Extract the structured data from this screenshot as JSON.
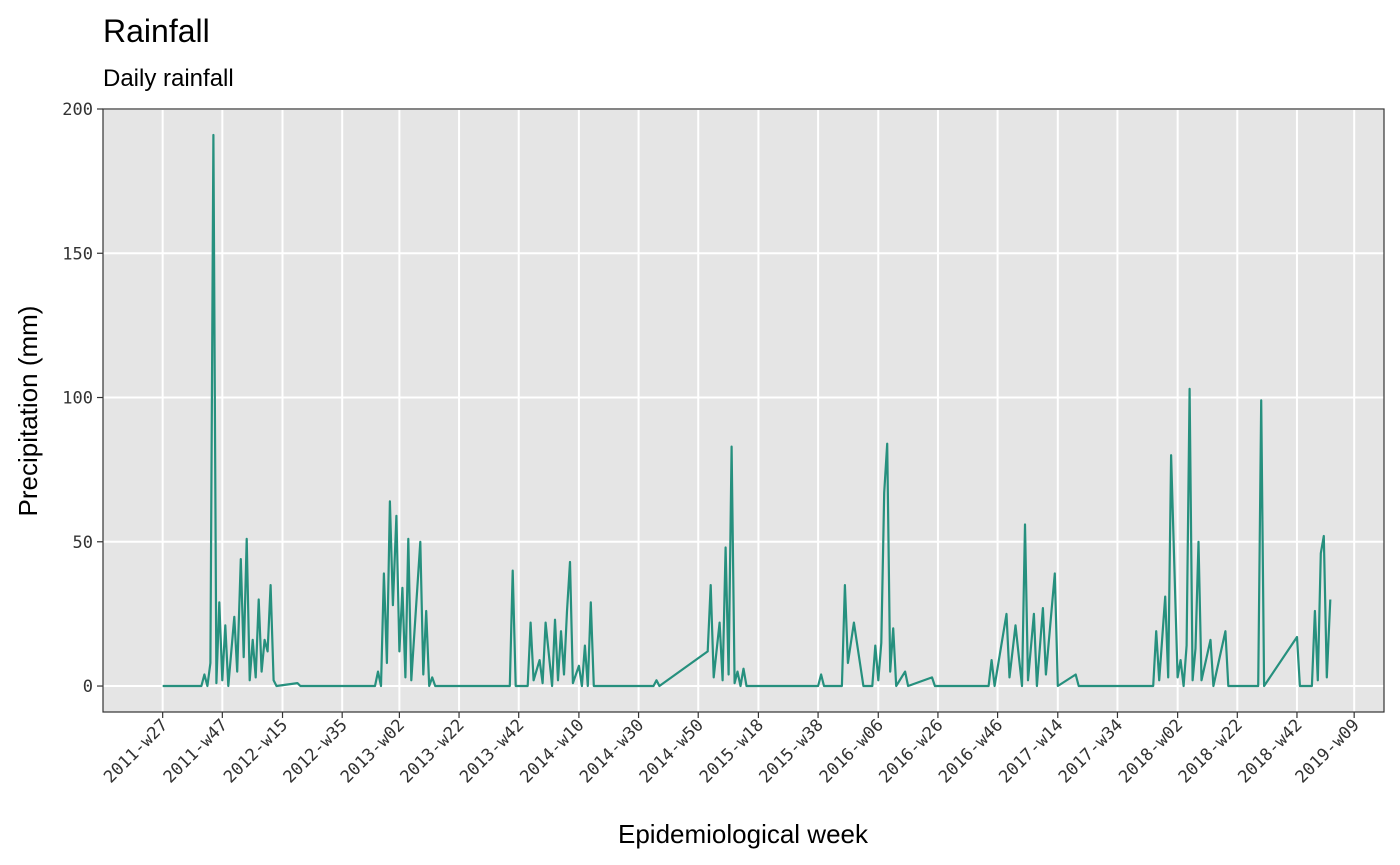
{
  "chart_data": {
    "type": "line",
    "title": "Rainfall",
    "subtitle": "Daily rainfall",
    "x_label": "Epidemiological week",
    "y_label": "Precipitation (mm)",
    "color": "#26907e",
    "grid": true,
    "x": [
      "2011-w27",
      "2011-w40",
      "2011-w41",
      "2011-w42",
      "2011-w43",
      "2011-w44",
      "2011-w45",
      "2011-w46",
      "2011-w47",
      "2011-w48",
      "2011-w49",
      "2011-w51",
      "2011-w52",
      "2012-w01",
      "2012-w02",
      "2012-w03",
      "2012-w04",
      "2012-w05",
      "2012-w06",
      "2012-w07",
      "2012-w08",
      "2012-w09",
      "2012-w10",
      "2012-w11",
      "2012-w12",
      "2012-w13",
      "2012-w20",
      "2012-w21",
      "2012-w46",
      "2012-w47",
      "2012-w48",
      "2012-w49",
      "2012-w50",
      "2012-w51",
      "2012-w52",
      "2013-w01",
      "2013-w02",
      "2013-w03",
      "2013-w04",
      "2013-w05",
      "2013-w06",
      "2013-w09",
      "2013-w10",
      "2013-w11",
      "2013-w12",
      "2013-w13",
      "2013-w14",
      "2013-w39",
      "2013-w40",
      "2013-w41",
      "2013-w45",
      "2013-w46",
      "2013-w47",
      "2013-w49",
      "2013-w50",
      "2013-w51",
      "2014-w01",
      "2014-w02",
      "2014-w03",
      "2014-w04",
      "2014-w05",
      "2014-w06",
      "2014-w07",
      "2014-w08",
      "2014-w10",
      "2014-w11",
      "2014-w12",
      "2014-w13",
      "2014-w14",
      "2014-w15",
      "2014-w35",
      "2014-w36",
      "2014-w37",
      "2015-w01",
      "2015-w02",
      "2015-w03",
      "2015-w05",
      "2015-w06",
      "2015-w07",
      "2015-w08",
      "2015-w09",
      "2015-w10",
      "2015-w11",
      "2015-w12",
      "2015-w13",
      "2015-w14",
      "2015-w38",
      "2015-w39",
      "2015-w40",
      "2015-w46",
      "2015-w47",
      "2015-w48",
      "2015-w50",
      "2016-w01",
      "2016-w04",
      "2016-w05",
      "2016-w06",
      "2016-w07",
      "2016-w08",
      "2016-w09",
      "2016-w10",
      "2016-w11",
      "2016-w12",
      "2016-w15",
      "2016-w16",
      "2016-w24",
      "2016-w25",
      "2016-w43",
      "2016-w44",
      "2016-w45",
      "2016-w49",
      "2016-w50",
      "2016-w52",
      "2017-w02",
      "2017-w03",
      "2017-w04",
      "2017-w06",
      "2017-w07",
      "2017-w09",
      "2017-w10",
      "2017-w13",
      "2017-w14",
      "2017-w20",
      "2017-w21",
      "2017-w46",
      "2017-w47",
      "2017-w48",
      "2017-w50",
      "2017-w51",
      "2017-w52",
      "2018-w02",
      "2018-w03",
      "2018-w04",
      "2018-w05",
      "2018-w06",
      "2018-w07",
      "2018-w08",
      "2018-w09",
      "2018-w10",
      "2018-w13",
      "2018-w14",
      "2018-w18",
      "2018-w19",
      "2018-w29",
      "2018-w30",
      "2018-w31",
      "2018-w42",
      "2018-w43",
      "2018-w47",
      "2018-w48",
      "2018-w49",
      "2018-w50",
      "2018-w51",
      "2018-w52",
      "2019-w01"
    ],
    "values": [
      0,
      0,
      4,
      0,
      8,
      191,
      1,
      29,
      2,
      21,
      0,
      24,
      5,
      44,
      10,
      51,
      2,
      16,
      3,
      30,
      5,
      16,
      12,
      35,
      2,
      0,
      1,
      0,
      0,
      5,
      0,
      39,
      8,
      64,
      28,
      59,
      12,
      34,
      3,
      51,
      2,
      50,
      4,
      26,
      0,
      3,
      0,
      0,
      40,
      0,
      0,
      22,
      2,
      9,
      1,
      22,
      0,
      23,
      2,
      19,
      4,
      26,
      43,
      1,
      7,
      0,
      14,
      0,
      29,
      0,
      0,
      2,
      0,
      12,
      35,
      3,
      22,
      2,
      48,
      4,
      83,
      1,
      5,
      0,
      6,
      0,
      0,
      4,
      0,
      0,
      35,
      8,
      22,
      0,
      0,
      14,
      2,
      15,
      67,
      84,
      5,
      20,
      0,
      5,
      0,
      3,
      0,
      0,
      9,
      0,
      25,
      3,
      21,
      0,
      56,
      2,
      25,
      0,
      27,
      4,
      39,
      0,
      4,
      0,
      0,
      19,
      2,
      31,
      3,
      80,
      3,
      9,
      0,
      14,
      103,
      2,
      13,
      50,
      2,
      16,
      0,
      19,
      0,
      0,
      99,
      0,
      17,
      0,
      0,
      26,
      2,
      46,
      52,
      3,
      30
    ],
    "xlim": [
      "2011-w07",
      "2019-w19"
    ],
    "ylim": [
      -9,
      200
    ],
    "yticks": [
      0,
      50,
      100,
      150,
      200
    ],
    "xticks": [
      "2011-w27",
      "2011-w47",
      "2012-w15",
      "2012-w35",
      "2013-w02",
      "2013-w22",
      "2013-w42",
      "2014-w10",
      "2014-w30",
      "2014-w50",
      "2015-w18",
      "2015-w38",
      "2016-w06",
      "2016-w26",
      "2016-w46",
      "2017-w14",
      "2017-w34",
      "2018-w02",
      "2018-w22",
      "2018-w42",
      "2019-w09"
    ]
  }
}
